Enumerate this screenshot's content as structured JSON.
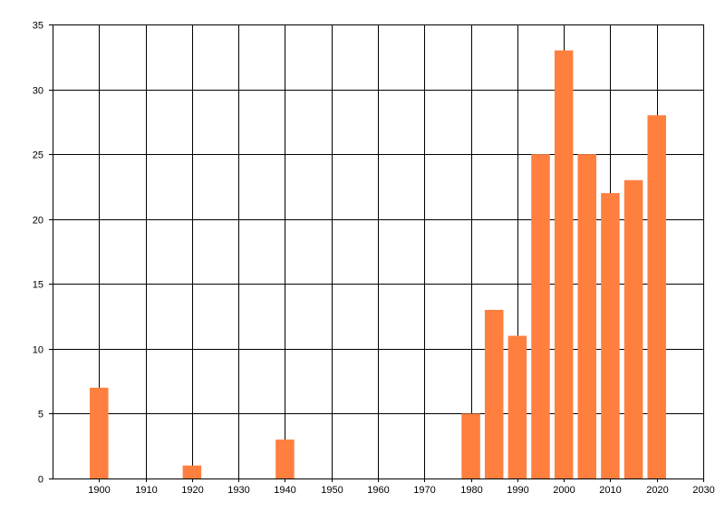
{
  "chart_data": {
    "type": "bar",
    "title": "",
    "xlabel": "",
    "ylabel": "",
    "xlim": [
      1890,
      2030
    ],
    "ylim": [
      0,
      35
    ],
    "x_ticks": [
      "1900",
      "1910",
      "1920",
      "1930",
      "1940",
      "1950",
      "1960",
      "1970",
      "1980",
      "1990",
      "2000",
      "2010",
      "2020",
      "2030"
    ],
    "y_ticks": [
      "0",
      "5",
      "10",
      "15",
      "20",
      "25",
      "30",
      "35"
    ],
    "grid": true,
    "bar_color": "#FF7F3F",
    "bar_width_years": 4,
    "bars": [
      {
        "x": 1900,
        "value": 7
      },
      {
        "x": 1920,
        "value": 1
      },
      {
        "x": 1940,
        "value": 3
      },
      {
        "x": 1980,
        "value": 5
      },
      {
        "x": 1985,
        "value": 13
      },
      {
        "x": 1990,
        "value": 11
      },
      {
        "x": 1995,
        "value": 25
      },
      {
        "x": 2000,
        "value": 33
      },
      {
        "x": 2005,
        "value": 25
      },
      {
        "x": 2010,
        "value": 22
      },
      {
        "x": 2015,
        "value": 23
      },
      {
        "x": 2020,
        "value": 28
      }
    ]
  }
}
